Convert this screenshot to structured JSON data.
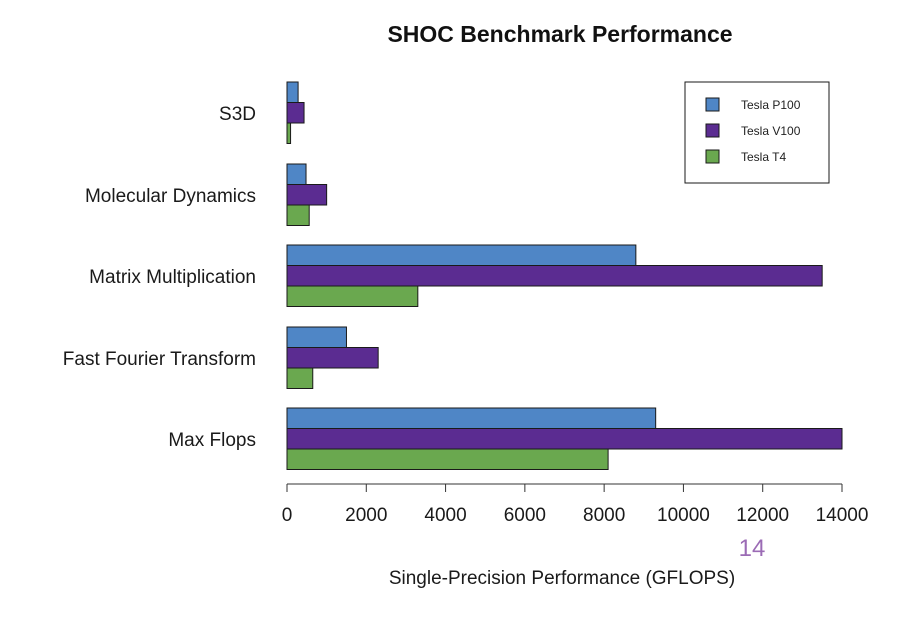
{
  "chart_data": {
    "type": "bar",
    "orientation": "horizontal",
    "title": "SHOC Benchmark Performance",
    "xlabel": "Single-Precision Performance (GFLOPS)",
    "ylabel": "",
    "categories": [
      "S3D",
      "Molecular Dynamics",
      "Matrix Multiplication",
      "Fast Fourier Transform",
      "Max Flops"
    ],
    "series": [
      {
        "name": "Tesla P100",
        "color": "#4f86c6",
        "values": [
          280,
          480,
          8800,
          1500,
          9300
        ]
      },
      {
        "name": "Tesla V100",
        "color": "#5b2c91",
        "values": [
          430,
          1000,
          13500,
          2300,
          14000
        ]
      },
      {
        "name": "Tesla T4",
        "color": "#6aa84f",
        "values": [
          90,
          560,
          3300,
          650,
          8100
        ]
      }
    ],
    "xlim": [
      0,
      14000
    ],
    "xticks": [
      "0",
      "2000",
      "4000",
      "6000",
      "8000",
      "10000",
      "12000",
      "14000"
    ],
    "grid": false,
    "legend_position": "top-right"
  },
  "page_number": "14"
}
